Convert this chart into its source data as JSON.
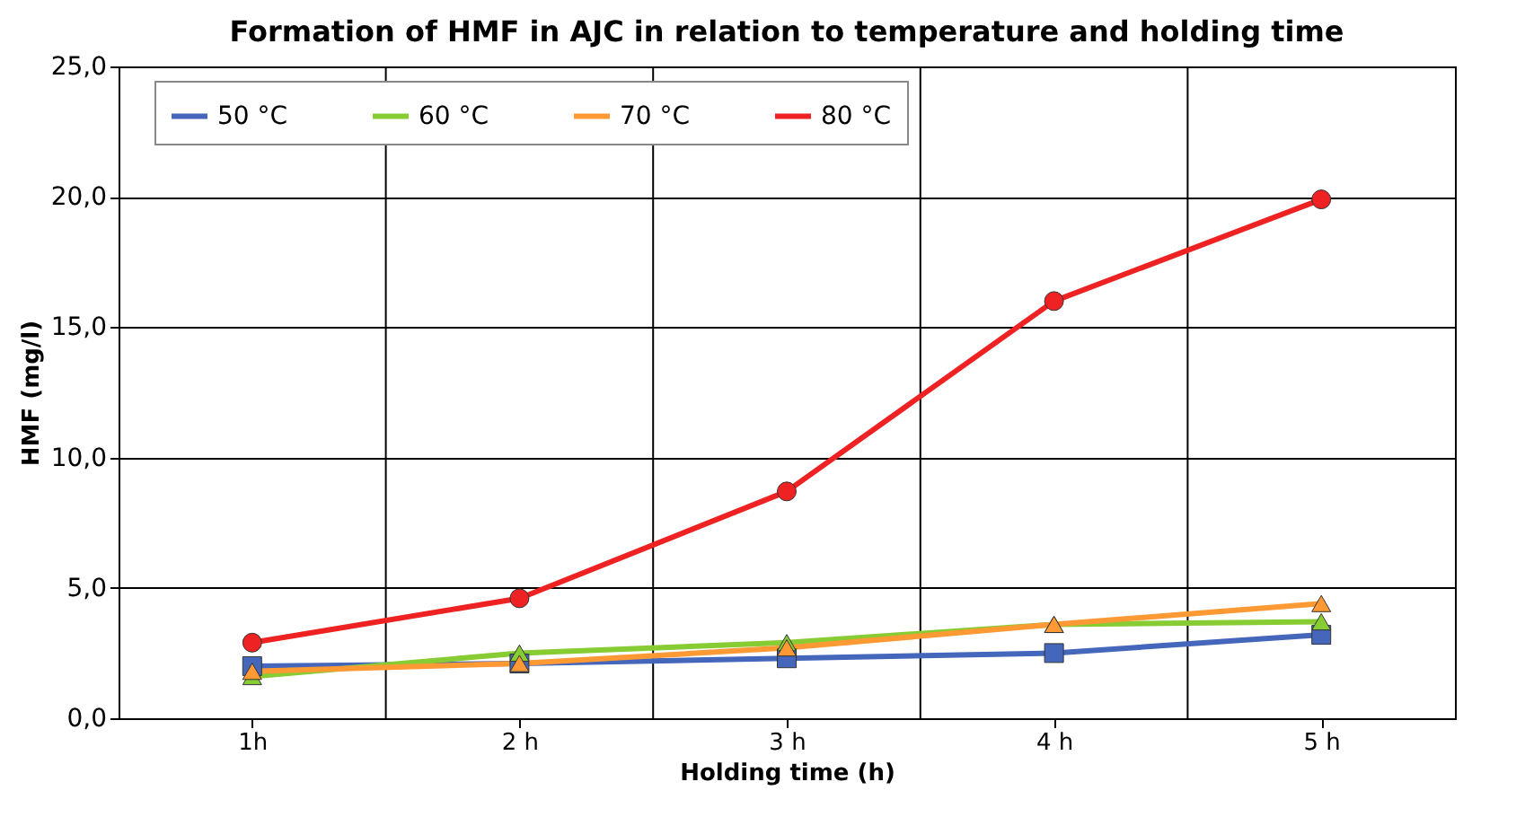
{
  "chart_data": {
    "type": "line",
    "title": "Formation of HMF in AJC in relation to temperature and holding time",
    "xlabel": "Holding time (h)",
    "ylabel": "HMF (mg/l)",
    "categories": [
      "1h",
      "2 h",
      "3 h",
      "4 h",
      "5 h"
    ],
    "series": [
      {
        "name": "50 °C",
        "color": "#4466bb",
        "marker": "square",
        "values": [
          2.0,
          2.1,
          2.3,
          2.5,
          3.2
        ]
      },
      {
        "name": "60 °C",
        "color": "#88cc33",
        "marker": "triangle",
        "values": [
          1.6,
          2.5,
          2.9,
          3.6,
          3.7
        ]
      },
      {
        "name": "70 °C",
        "color": "#ff9933",
        "marker": "triangle",
        "values": [
          1.8,
          2.1,
          2.7,
          3.6,
          4.4
        ]
      },
      {
        "name": "80 °C",
        "color": "#ee2222",
        "marker": "circle",
        "values": [
          2.9,
          4.6,
          8.7,
          16.0,
          19.9
        ]
      }
    ],
    "ylim": [
      0,
      25
    ],
    "yticks": [
      {
        "value": 0,
        "label": "0,0"
      },
      {
        "value": 5,
        "label": "5,0"
      },
      {
        "value": 10,
        "label": "10,0"
      },
      {
        "value": 15,
        "label": "15,0"
      },
      {
        "value": 20,
        "label": "20,0"
      },
      {
        "value": 25,
        "label": "25,0"
      }
    ],
    "grid": true,
    "legend": "top",
    "line_style": "solid"
  }
}
